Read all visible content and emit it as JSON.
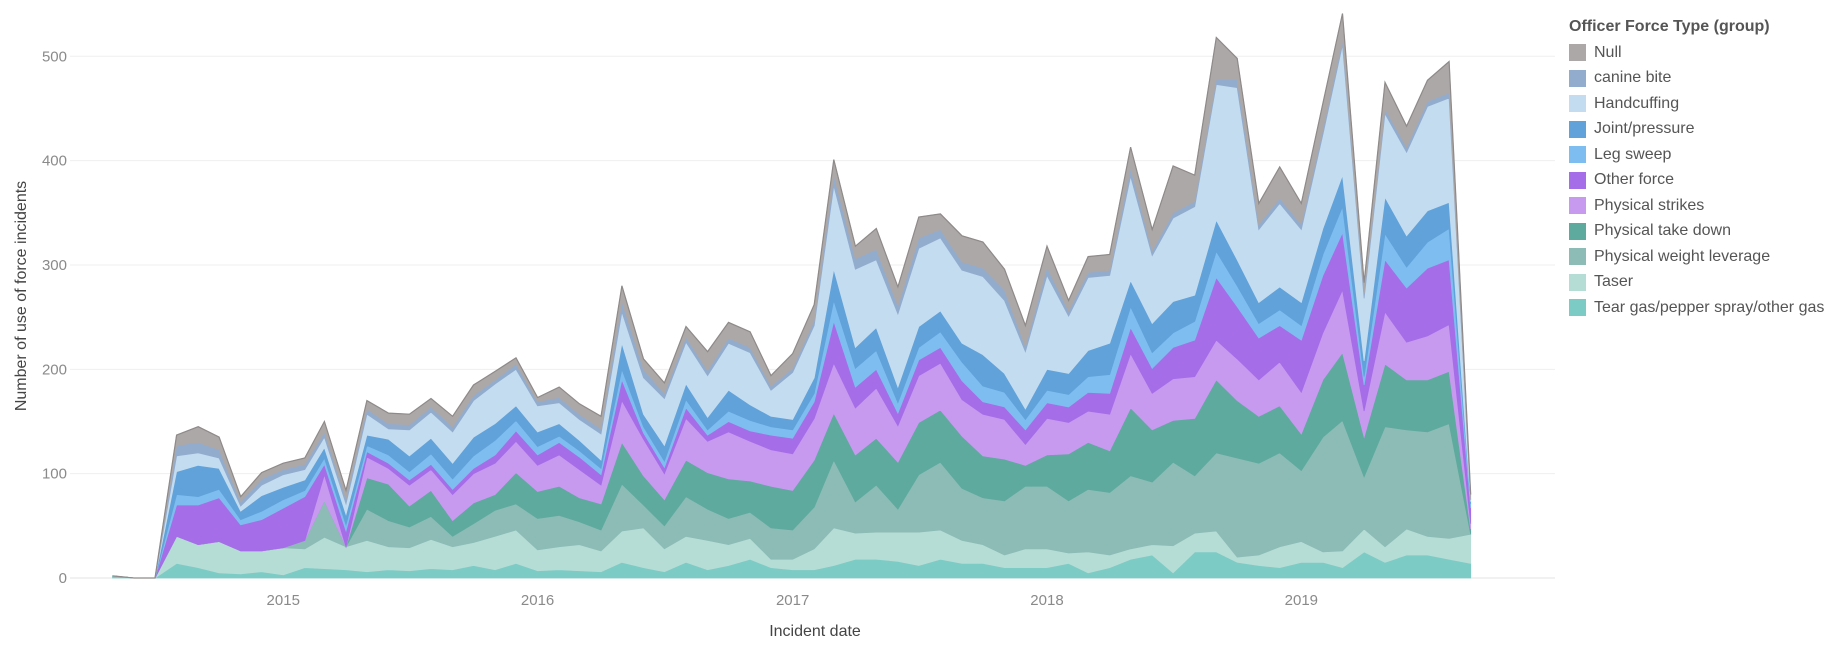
{
  "chart_data": {
    "type": "area",
    "stacked": true,
    "xlabel": "Incident date",
    "ylabel": "Number of use of force incidents",
    "ylim": [
      0,
      530
    ],
    "yticks": [
      0,
      100,
      200,
      300,
      400,
      500
    ],
    "xlim": [
      "2014-03-01",
      "2019-12-31"
    ],
    "xticks": [
      {
        "date": "2015-01-01",
        "label": "2015"
      },
      {
        "date": "2016-01-01",
        "label": "2016"
      },
      {
        "date": "2017-01-01",
        "label": "2017"
      },
      {
        "date": "2018-01-01",
        "label": "2018"
      },
      {
        "date": "2019-01-01",
        "label": "2019"
      }
    ],
    "grid": "horizontal",
    "legend_position": "right",
    "legend_title": "Officer Force Type (group)",
    "x": [
      "2014-05",
      "2014-06",
      "2014-07",
      "2014-08",
      "2014-09",
      "2014-10",
      "2014-11",
      "2014-12",
      "2015-01",
      "2015-02",
      "2015-03",
      "2015-04",
      "2015-05",
      "2015-06",
      "2015-07",
      "2015-08",
      "2015-09",
      "2015-10",
      "2015-11",
      "2015-12",
      "2016-01",
      "2016-02",
      "2016-03",
      "2016-04",
      "2016-05",
      "2016-06",
      "2016-07",
      "2016-08",
      "2016-09",
      "2016-10",
      "2016-11",
      "2016-12",
      "2017-01",
      "2017-02",
      "2017-03",
      "2017-04",
      "2017-05",
      "2017-06",
      "2017-07",
      "2017-08",
      "2017-09",
      "2017-10",
      "2017-11",
      "2017-12",
      "2018-01",
      "2018-02",
      "2018-03",
      "2018-04",
      "2018-05",
      "2018-06",
      "2018-07",
      "2018-08",
      "2018-09",
      "2018-10",
      "2018-11",
      "2018-12",
      "2019-01",
      "2019-02",
      "2019-03",
      "2019-04",
      "2019-05",
      "2019-06",
      "2019-07",
      "2019-08",
      "2019-09"
    ],
    "series": [
      {
        "name": "Tear gas/pepper spray/other gas",
        "color": "#7ccbc5",
        "values": [
          2,
          0,
          0,
          14,
          10,
          5,
          4,
          6,
          3,
          10,
          9,
          8,
          6,
          8,
          7,
          9,
          8,
          12,
          8,
          14,
          7,
          8,
          7,
          6,
          15,
          10,
          6,
          15,
          8,
          12,
          18,
          10,
          8,
          8,
          12,
          18,
          18,
          16,
          12,
          18,
          14,
          14,
          10,
          10,
          10,
          14,
          5,
          10,
          18,
          22,
          5,
          25,
          25,
          15,
          12,
          10,
          15,
          15,
          10,
          25,
          15,
          22,
          22,
          18,
          14
        ]
      },
      {
        "name": "Taser",
        "color": "#b6dcd6",
        "values": [
          0,
          0,
          0,
          26,
          22,
          30,
          22,
          20,
          26,
          18,
          30,
          22,
          30,
          22,
          22,
          28,
          22,
          22,
          32,
          32,
          20,
          22,
          25,
          20,
          30,
          38,
          22,
          25,
          28,
          20,
          20,
          8,
          10,
          20,
          36,
          25,
          26,
          28,
          32,
          28,
          22,
          18,
          12,
          18,
          18,
          10,
          20,
          12,
          10,
          10,
          26,
          18,
          20,
          5,
          10,
          20,
          20,
          10,
          16,
          22,
          15,
          25,
          18,
          20,
          28
        ]
      },
      {
        "name": "Physical weight leverage",
        "color": "#8cbcb5",
        "values": [
          0,
          0,
          0,
          0,
          0,
          0,
          0,
          0,
          0,
          8,
          35,
          0,
          30,
          25,
          20,
          22,
          10,
          18,
          25,
          25,
          30,
          30,
          22,
          20,
          45,
          22,
          22,
          38,
          30,
          25,
          25,
          30,
          28,
          40,
          65,
          30,
          45,
          22,
          55,
          65,
          50,
          45,
          52,
          60,
          60,
          50,
          60,
          60,
          70,
          60,
          80,
          55,
          75,
          95,
          88,
          90,
          68,
          110,
          125,
          50,
          115,
          95,
          100,
          110,
          0
        ]
      },
      {
        "name": "Physical take down",
        "color": "#5eaa9e",
        "values": [
          0,
          0,
          0,
          0,
          0,
          0,
          0,
          0,
          0,
          0,
          0,
          0,
          30,
          35,
          20,
          25,
          15,
          20,
          15,
          30,
          26,
          28,
          23,
          25,
          40,
          28,
          25,
          35,
          35,
          38,
          30,
          40,
          38,
          45,
          45,
          45,
          45,
          45,
          50,
          50,
          50,
          40,
          40,
          20,
          30,
          45,
          45,
          40,
          65,
          50,
          40,
          55,
          70,
          55,
          45,
          45,
          35,
          55,
          65,
          38,
          60,
          48,
          50,
          50,
          5
        ]
      },
      {
        "name": "Physical strikes",
        "color": "#c79af0",
        "values": [
          0,
          0,
          0,
          0,
          0,
          0,
          0,
          0,
          0,
          0,
          25,
          0,
          20,
          15,
          20,
          20,
          25,
          28,
          30,
          30,
          25,
          30,
          27,
          18,
          40,
          35,
          25,
          40,
          30,
          45,
          38,
          35,
          35,
          40,
          48,
          45,
          48,
          35,
          45,
          45,
          35,
          40,
          38,
          20,
          35,
          30,
          30,
          35,
          52,
          35,
          40,
          40,
          38,
          40,
          35,
          42,
          40,
          45,
          60,
          25,
          50,
          36,
          42,
          45,
          5
        ]
      },
      {
        "name": "Other force",
        "color": "#a66de8",
        "values": [
          0,
          0,
          0,
          30,
          38,
          42,
          25,
          30,
          38,
          42,
          10,
          15,
          5,
          5,
          5,
          5,
          5,
          5,
          8,
          10,
          10,
          12,
          12,
          10,
          20,
          6,
          6,
          10,
          6,
          10,
          10,
          14,
          15,
          16,
          40,
          20,
          18,
          12,
          15,
          15,
          18,
          12,
          12,
          14,
          15,
          15,
          18,
          20,
          25,
          24,
          30,
          35,
          60,
          50,
          40,
          35,
          50,
          55,
          55,
          25,
          50,
          52,
          65,
          62,
          15
        ]
      },
      {
        "name": "Leg sweep",
        "color": "#7ebdf0",
        "values": [
          0,
          0,
          0,
          10,
          8,
          8,
          5,
          8,
          8,
          6,
          6,
          6,
          6,
          8,
          8,
          10,
          10,
          12,
          14,
          10,
          8,
          6,
          6,
          6,
          10,
          6,
          6,
          8,
          5,
          10,
          10,
          8,
          8,
          8,
          20,
          18,
          18,
          10,
          12,
          15,
          18,
          15,
          14,
          10,
          12,
          12,
          15,
          18,
          20,
          15,
          14,
          18,
          25,
          20,
          14,
          15,
          14,
          20,
          25,
          8,
          25,
          20,
          25,
          30,
          4
        ]
      },
      {
        "name": "Joint/pressure",
        "color": "#60a2d9",
        "values": [
          0,
          0,
          0,
          22,
          30,
          20,
          8,
          15,
          12,
          10,
          10,
          10,
          10,
          15,
          15,
          15,
          15,
          18,
          16,
          14,
          14,
          12,
          10,
          8,
          25,
          12,
          15,
          15,
          12,
          20,
          15,
          10,
          10,
          15,
          30,
          20,
          22,
          15,
          20,
          20,
          18,
          30,
          18,
          10,
          20,
          20,
          25,
          30,
          25,
          28,
          30,
          25,
          30,
          25,
          20,
          22,
          22,
          25,
          30,
          15,
          35,
          30,
          30,
          25,
          2
        ]
      },
      {
        "name": "Handcuffing",
        "color": "#c4dcf0",
        "values": [
          0,
          0,
          0,
          15,
          12,
          10,
          5,
          10,
          12,
          10,
          10,
          10,
          20,
          10,
          25,
          25,
          30,
          35,
          38,
          35,
          25,
          20,
          20,
          25,
          30,
          35,
          45,
          40,
          40,
          45,
          50,
          25,
          45,
          50,
          80,
          75,
          65,
          70,
          75,
          70,
          70,
          75,
          70,
          55,
          90,
          55,
          70,
          65,
          100,
          65,
          80,
          85,
          130,
          165,
          70,
          80,
          70,
          90,
          125,
          60,
          80,
          80,
          100,
          100,
          2
        ]
      },
      {
        "name": "canine bite",
        "color": "#92acce",
        "values": [
          0,
          0,
          0,
          10,
          10,
          8,
          4,
          6,
          5,
          5,
          5,
          5,
          5,
          5,
          5,
          5,
          5,
          5,
          4,
          5,
          4,
          5,
          5,
          5,
          10,
          8,
          5,
          5,
          5,
          5,
          5,
          4,
          4,
          5,
          10,
          10,
          10,
          8,
          10,
          8,
          8,
          8,
          10,
          5,
          8,
          5,
          5,
          5,
          8,
          5,
          5,
          5,
          5,
          8,
          5,
          5,
          5,
          5,
          5,
          5,
          5,
          5,
          5,
          5,
          0
        ]
      },
      {
        "name": "Null",
        "color": "#ada8a8",
        "values": [
          0,
          0,
          0,
          10,
          15,
          12,
          5,
          6,
          6,
          6,
          10,
          8,
          8,
          10,
          10,
          8,
          10,
          10,
          8,
          6,
          4,
          10,
          10,
          12,
          15,
          10,
          10,
          10,
          18,
          15,
          15,
          10,
          14,
          15,
          15,
          12,
          20,
          18,
          20,
          15,
          25,
          25,
          20,
          20,
          20,
          10,
          15,
          15,
          20,
          20,
          45,
          25,
          40,
          20,
          20,
          30,
          20,
          25,
          25,
          10,
          25,
          20,
          20,
          30,
          5
        ]
      }
    ]
  }
}
